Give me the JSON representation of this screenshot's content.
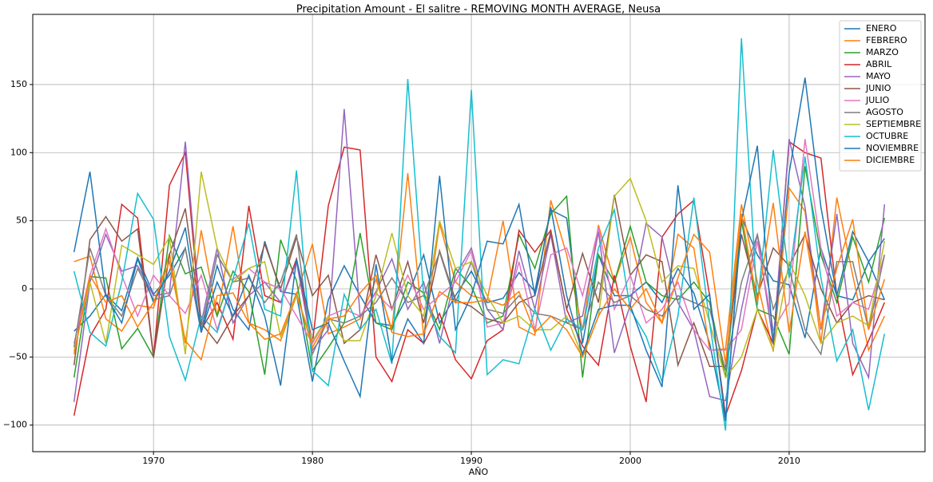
{
  "chart_data": {
    "type": "line",
    "title": "Precipitation Amount - El salitre - REMOVING MONTH AVERAGE, Neusa",
    "x_label": "AÑO",
    "x": [
      1965,
      1966,
      1967,
      1968,
      1969,
      1970,
      1971,
      1972,
      1973,
      1974,
      1975,
      1976,
      1977,
      1978,
      1979,
      1980,
      1981,
      1982,
      1983,
      1984,
      1985,
      1986,
      1987,
      1988,
      1989,
      1990,
      1991,
      1992,
      1993,
      1994,
      1995,
      1996,
      1997,
      1998,
      1999,
      2000,
      2001,
      2002,
      2003,
      2004,
      2005,
      2006,
      2007,
      2008,
      2009,
      2010,
      2011,
      2012,
      2013,
      2014,
      2015,
      2016
    ],
    "xlim": [
      1962.4,
      2018.55
    ],
    "xticks": [
      1970,
      1980,
      1990,
      2000,
      2010
    ],
    "ylim": [
      -119.5,
      201.5
    ],
    "yticks": [
      {
        "value": -100,
        "label": "−100"
      },
      {
        "value": -50,
        "label": "−50"
      },
      0,
      50,
      100,
      150
    ],
    "grid": true,
    "legend": "upper right",
    "series": [
      {
        "name": "ENERO",
        "color": "#1f77b4",
        "values": [
          -31,
          -20,
          -4,
          -16,
          23,
          -4,
          10,
          30,
          -32,
          17,
          -15,
          -30,
          35,
          -2,
          -4,
          -68,
          -8,
          17,
          -5,
          -25,
          -27,
          -5,
          25,
          -25,
          -5,
          13,
          -10,
          -7,
          12,
          -2,
          58,
          52,
          -40,
          25,
          -5,
          -5,
          5,
          -10,
          15,
          -3,
          -40,
          -97,
          53,
          25,
          6,
          3,
          -36,
          30,
          -5,
          -8,
          20,
          -8
        ]
      },
      {
        "name": "FEBRERO",
        "color": "#ff7f0e",
        "values": [
          20,
          24,
          -22,
          -31,
          -12,
          -14,
          26,
          -40,
          43,
          -20,
          46,
          -25,
          -30,
          -38,
          -5,
          33,
          -33,
          -28,
          -22,
          7,
          -30,
          85,
          -35,
          48,
          5,
          -5,
          -8,
          50,
          -28,
          -34,
          65,
          25,
          -30,
          47,
          5,
          38,
          -10,
          -25,
          40,
          30,
          -45,
          -44,
          62,
          5,
          -46,
          74,
          57,
          -40,
          67,
          10,
          -45,
          -20
        ]
      },
      {
        "name": "MARZO",
        "color": "#2ca02c",
        "values": [
          -65,
          9,
          8,
          -44,
          -29,
          -50,
          39,
          11,
          16,
          -20,
          13,
          -2,
          -63,
          36,
          6,
          -60,
          -43,
          -25,
          41,
          -25,
          -30,
          5,
          -3,
          -30,
          15,
          2,
          -25,
          -20,
          40,
          15,
          55,
          68,
          -65,
          25,
          5,
          46,
          5,
          -5,
          -8,
          5,
          -10,
          -65,
          50,
          -15,
          -20,
          -48,
          90,
          25,
          -10,
          38,
          5,
          52
        ]
      },
      {
        "name": "ABRIL",
        "color": "#d62728",
        "values": [
          -93,
          -35,
          -15,
          62,
          52,
          -50,
          76,
          100,
          -30,
          -10,
          -37,
          61,
          -5,
          -10,
          22,
          -40,
          61,
          104,
          102,
          -50,
          -68,
          -30,
          -40,
          -18,
          -52,
          -66,
          -38,
          -30,
          43,
          27,
          43,
          -15,
          -42,
          -56,
          10,
          -42,
          -83,
          38,
          55,
          65,
          -5,
          -93,
          -60,
          -15,
          -40,
          108,
          100,
          96,
          -5,
          -63,
          -38,
          -10
        ]
      },
      {
        "name": "MAYO",
        "color": "#9467bd",
        "values": [
          -83,
          5,
          40,
          13,
          17,
          -5,
          -3,
          108,
          -25,
          30,
          -25,
          -5,
          5,
          -10,
          20,
          -45,
          -30,
          132,
          -20,
          -2,
          22,
          -15,
          5,
          -40,
          10,
          30,
          -15,
          -30,
          28,
          -15,
          40,
          -25,
          -20,
          42,
          -47,
          -12,
          48,
          38,
          -10,
          -30,
          -79,
          -82,
          -15,
          40,
          -40,
          110,
          60,
          -30,
          55,
          -40,
          -65,
          62
        ]
      },
      {
        "name": "JUNIO",
        "color": "#8c564b",
        "values": [
          -56,
          36,
          53,
          35,
          44,
          -50,
          25,
          59,
          -25,
          -40,
          -20,
          -5,
          33,
          0,
          38,
          -5,
          10,
          -40,
          -30,
          25,
          -15,
          20,
          -25,
          28,
          -8,
          -13,
          -22,
          -25,
          -10,
          -5,
          42,
          -15,
          26,
          -10,
          69,
          10,
          25,
          20,
          -56,
          -25,
          -57,
          -57,
          40,
          -5,
          30,
          17,
          40,
          0,
          -25,
          -10,
          -5,
          -8
        ]
      },
      {
        "name": "JULIO",
        "color": "#e377c2",
        "values": [
          -40,
          10,
          44,
          10,
          -20,
          10,
          -5,
          -18,
          10,
          -30,
          7,
          15,
          5,
          0,
          -20,
          -40,
          -20,
          -15,
          -20,
          -3,
          -15,
          10,
          -15,
          -5,
          5,
          28,
          -28,
          -25,
          20,
          -30,
          25,
          30,
          -5,
          45,
          -15,
          10,
          -25,
          -15,
          5,
          -30,
          -45,
          -45,
          -30,
          35,
          -30,
          -10,
          110,
          30,
          -20,
          -10,
          -15,
          25
        ]
      },
      {
        "name": "AGOSTO",
        "color": "#7f7f7f",
        "values": [
          -43,
          30,
          -5,
          -20,
          15,
          -8,
          -5,
          30,
          -30,
          25,
          5,
          8,
          -10,
          5,
          40,
          -48,
          -22,
          -25,
          -20,
          -10,
          8,
          -10,
          -5,
          27,
          -10,
          20,
          -15,
          -18,
          -5,
          -18,
          -20,
          -25,
          -30,
          5,
          -10,
          -5,
          -15,
          -20,
          -5,
          -10,
          -15,
          -60,
          5,
          40,
          -15,
          15,
          -30,
          -48,
          20,
          20,
          -30,
          25
        ]
      },
      {
        "name": "SEPTIEMBRE",
        "color": "#bcbd22",
        "values": [
          -46,
          5,
          -40,
          32,
          25,
          18,
          38,
          -48,
          86,
          30,
          5,
          15,
          20,
          -35,
          -5,
          -38,
          -20,
          -38,
          -38,
          -5,
          41,
          -5,
          -20,
          50,
          15,
          20,
          -5,
          -25,
          -20,
          -30,
          -30,
          -20,
          -50,
          -20,
          68,
          81,
          50,
          5,
          17,
          15,
          -25,
          -65,
          -50,
          -15,
          -45,
          20,
          -5,
          -40,
          -25,
          -20,
          -27,
          35
        ]
      },
      {
        "name": "OCTUBRE",
        "color": "#17becf",
        "values": [
          13,
          -32,
          -42,
          5,
          70,
          51,
          -35,
          -67,
          -20,
          -32,
          7,
          48,
          -15,
          -20,
          87,
          -60,
          -71,
          -4,
          -30,
          -15,
          -55,
          154,
          -5,
          -35,
          -47,
          146,
          -63,
          -52,
          -55,
          -15,
          -45,
          -22,
          -30,
          30,
          58,
          -15,
          -35,
          -68,
          -20,
          67,
          -25,
          -104,
          184,
          -12,
          102,
          8,
          97,
          8,
          -53,
          -30,
          -89,
          -33
        ]
      },
      {
        "name": "NOVIEMBRE",
        "color": "#1f77b4",
        "values": [
          27,
          86,
          -5,
          -25,
          22,
          -10,
          13,
          45,
          -32,
          5,
          -20,
          10,
          -20,
          -71,
          22,
          -30,
          -25,
          -53,
          -79,
          18,
          -53,
          -22,
          -40,
          83,
          -30,
          -5,
          35,
          33,
          62,
          -5,
          60,
          -5,
          -48,
          -15,
          -12,
          -12,
          -45,
          -72,
          76,
          -15,
          -4,
          -97,
          50,
          105,
          -40,
          85,
          155,
          60,
          -5,
          42,
          20,
          37
        ]
      },
      {
        "name": "DICIEMBRE",
        "color": "#ff7f0e",
        "values": [
          -48,
          10,
          -10,
          -5,
          -28,
          -10,
          20,
          -38,
          -52,
          -5,
          -3,
          -25,
          -37,
          -33,
          -3,
          -43,
          -22,
          -20,
          -3,
          10,
          -32,
          -35,
          -33,
          -2,
          -10,
          -10,
          -8,
          -12,
          -2,
          -32,
          -20,
          -30,
          -50,
          -20,
          0,
          -15,
          0,
          -25,
          8,
          40,
          27,
          -55,
          55,
          -10,
          63,
          -32,
          42,
          -28,
          15,
          51,
          -30,
          7
        ]
      }
    ]
  }
}
